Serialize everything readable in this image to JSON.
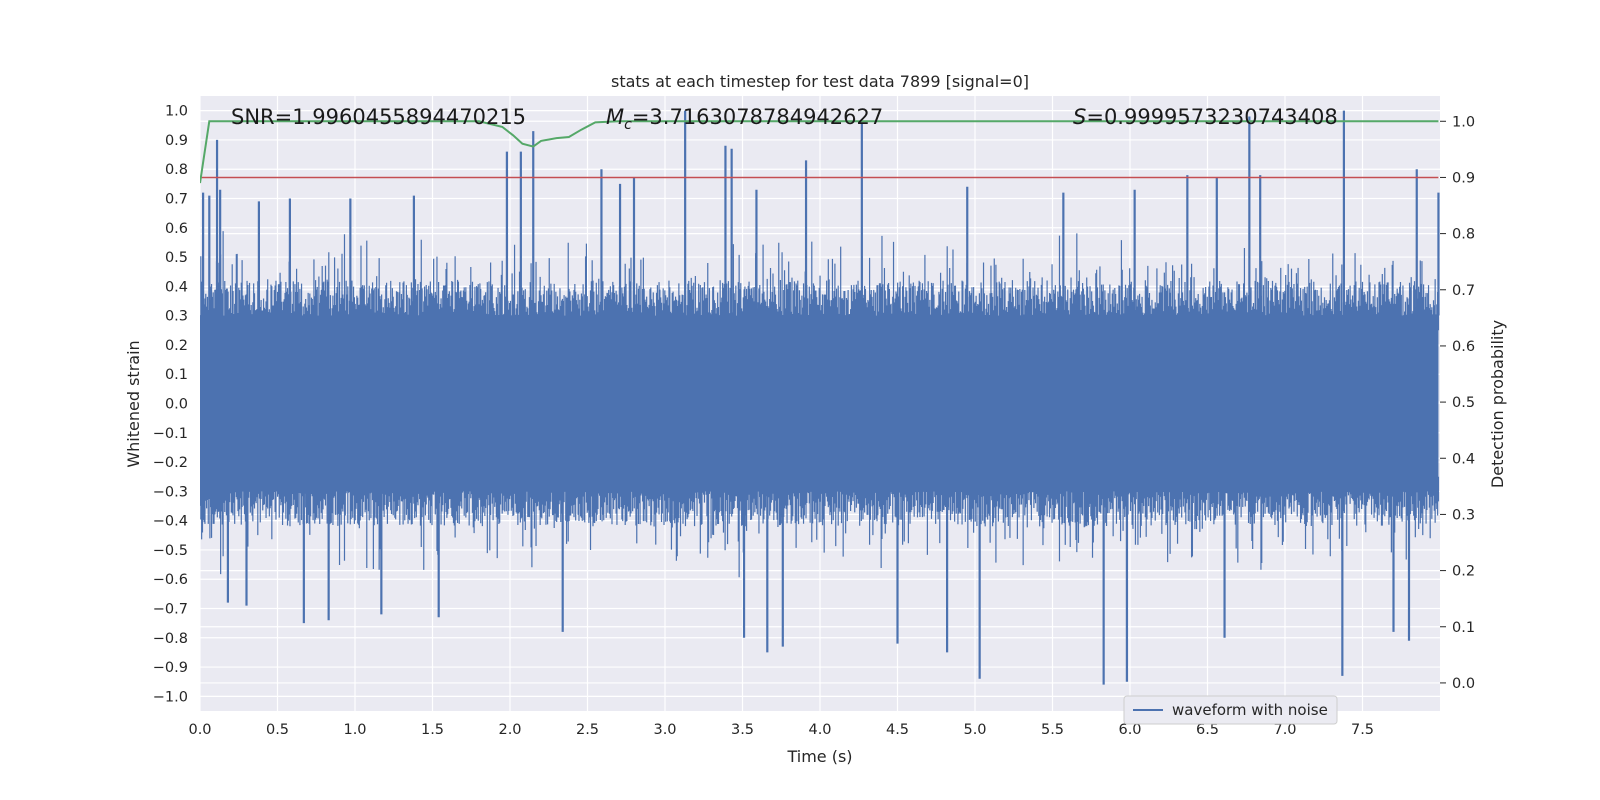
{
  "chart_data": {
    "type": "line",
    "title": "stats at each timestep for test data 7899 [signal=0]",
    "xlabel": "Time (s)",
    "ylabel": "Whitened strain",
    "y2label": "Detection probability",
    "xlim": [
      0.0,
      8.0
    ],
    "ylim": [
      -1.05,
      1.05
    ],
    "y2lim": [
      -0.05,
      1.045
    ],
    "xticks": [
      "0.0",
      "0.5",
      "1.0",
      "1.5",
      "2.0",
      "2.5",
      "3.0",
      "3.5",
      "4.0",
      "4.5",
      "5.0",
      "5.5",
      "6.0",
      "6.5",
      "7.0",
      "7.5"
    ],
    "yticks": [
      "1.0",
      "0.9",
      "0.8",
      "0.7",
      "0.6",
      "0.5",
      "0.4",
      "0.3",
      "0.2",
      "0.1",
      "0.0",
      "−0.1",
      "−0.2",
      "−0.3",
      "−0.4",
      "−0.5",
      "−0.6",
      "−0.7",
      "−0.8",
      "−0.9",
      "−1.0"
    ],
    "y2ticks": [
      "1.0",
      "0.9",
      "0.8",
      "0.7",
      "0.6",
      "0.5",
      "0.4",
      "0.3",
      "0.2",
      "0.1",
      "0.0"
    ],
    "annotations": {
      "snr": "SNR=1.9960455894470215",
      "mc_symbol": "M",
      "mc_sub": "c",
      "mc_value": "=3.7163078784942627",
      "s_symbol": "S",
      "s_value": "=0.9999573230743408"
    },
    "legend": {
      "label": "waveform with noise",
      "location": "lower-right"
    },
    "series": [
      {
        "name": "waveform with noise",
        "color": "#4c72b0",
        "axis": "left",
        "description": "noisy whitened strain, band mostly within about +/-0.4 with spikes",
        "upper_spikes": [
          [
            0.02,
            0.72
          ],
          [
            0.06,
            0.71
          ],
          [
            0.11,
            0.9
          ],
          [
            0.13,
            0.73
          ],
          [
            0.38,
            0.69
          ],
          [
            0.58,
            0.7
          ],
          [
            0.97,
            0.7
          ],
          [
            1.38,
            0.71
          ],
          [
            1.98,
            0.86
          ],
          [
            2.07,
            0.86
          ],
          [
            2.15,
            0.93
          ],
          [
            2.59,
            0.8
          ],
          [
            2.71,
            0.75
          ],
          [
            2.8,
            0.77
          ],
          [
            3.13,
            1.0
          ],
          [
            3.39,
            0.88
          ],
          [
            3.43,
            0.87
          ],
          [
            3.59,
            0.73
          ],
          [
            3.91,
            0.83
          ],
          [
            4.27,
            0.96
          ],
          [
            4.95,
            0.74
          ],
          [
            5.57,
            0.72
          ],
          [
            6.03,
            0.73
          ],
          [
            6.37,
            0.78
          ],
          [
            6.56,
            0.77
          ],
          [
            6.77,
            0.98
          ],
          [
            6.84,
            0.78
          ],
          [
            7.38,
            1.0
          ],
          [
            7.85,
            0.8
          ],
          [
            7.99,
            0.72
          ]
        ],
        "lower_spikes": [
          [
            0.18,
            -0.68
          ],
          [
            0.3,
            -0.69
          ],
          [
            0.67,
            -0.75
          ],
          [
            0.83,
            -0.74
          ],
          [
            1.17,
            -0.72
          ],
          [
            1.54,
            -0.73
          ],
          [
            2.34,
            -0.78
          ],
          [
            3.51,
            -0.8
          ],
          [
            3.66,
            -0.85
          ],
          [
            3.76,
            -0.83
          ],
          [
            4.5,
            -0.82
          ],
          [
            4.82,
            -0.85
          ],
          [
            5.03,
            -0.94
          ],
          [
            5.83,
            -0.96
          ],
          [
            5.98,
            -0.95
          ],
          [
            6.61,
            -0.8
          ],
          [
            7.37,
            -0.93
          ],
          [
            7.7,
            -0.78
          ],
          [
            7.8,
            -0.81
          ]
        ]
      },
      {
        "name": "detection probability",
        "color": "#55a868",
        "axis": "right",
        "points": [
          [
            0.0,
            0.89
          ],
          [
            0.06,
            1.0
          ],
          [
            1.8,
            1.0
          ],
          [
            1.95,
            0.99
          ],
          [
            2.02,
            0.975
          ],
          [
            2.08,
            0.96
          ],
          [
            2.15,
            0.955
          ],
          [
            2.2,
            0.965
          ],
          [
            2.3,
            0.97
          ],
          [
            2.38,
            0.972
          ],
          [
            2.46,
            0.985
          ],
          [
            2.55,
            0.998
          ],
          [
            2.7,
            1.0
          ],
          [
            7.99,
            1.0
          ]
        ]
      },
      {
        "name": "threshold",
        "color": "#c44e52",
        "axis": "right",
        "points": [
          [
            0.0,
            0.9
          ],
          [
            7.99,
            0.9
          ]
        ]
      }
    ]
  }
}
